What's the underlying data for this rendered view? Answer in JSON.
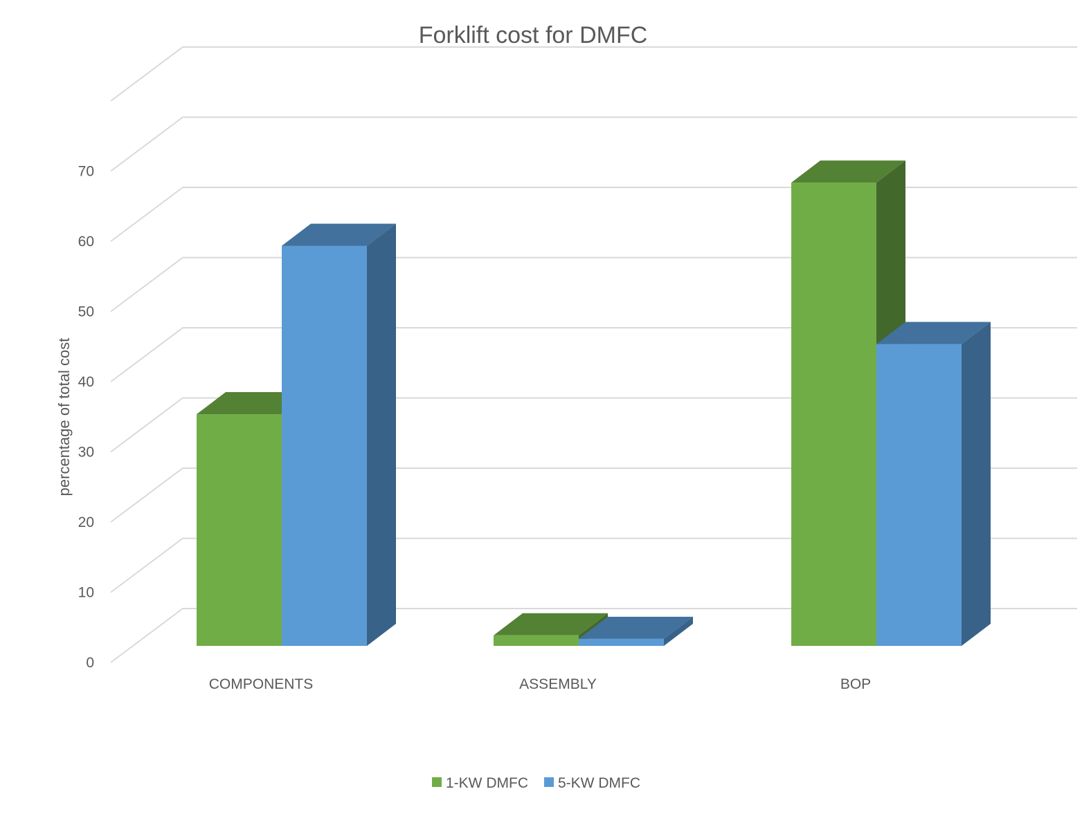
{
  "chart_data": {
    "type": "bar",
    "style": "3d-clustered-column",
    "title": "Forklift cost for DMFC",
    "xlabel": "",
    "ylabel": "percentage of total cost",
    "categories": [
      "COMPONENTS",
      "ASSEMBLY",
      "BOP"
    ],
    "series": [
      {
        "name": "1-KW DMFC",
        "values": [
          33,
          1.5,
          66
        ]
      },
      {
        "name": "5-KW DMFC",
        "values": [
          57,
          1,
          43
        ]
      }
    ],
    "ylim": [
      0,
      70
    ],
    "yticks": [
      "0",
      "10",
      "20",
      "30",
      "40",
      "50",
      "60",
      "70"
    ],
    "grid": true,
    "legend_position": "bottom",
    "colors": {
      "series_front": [
        "#70ad47",
        "#5b9bd5"
      ],
      "series_top": [
        "#548235",
        "#41719c"
      ],
      "series_side": [
        "#43682b",
        "#386287"
      ],
      "grid": "#d9d9d9",
      "text": "#595959"
    }
  }
}
